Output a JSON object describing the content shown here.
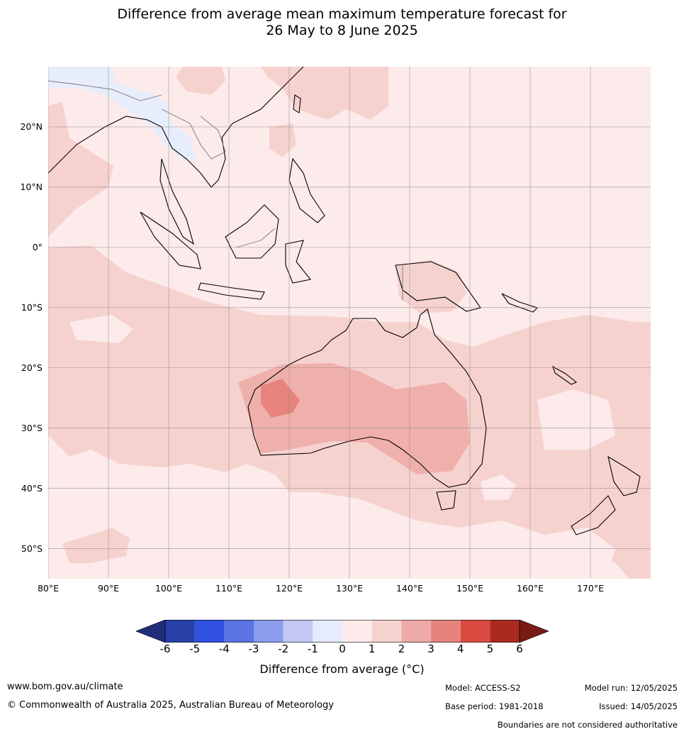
{
  "title_line1": "Difference from average mean maximum temperature forecast for",
  "title_line2": "26 May to 8 June 2025",
  "lat_ticks": [
    {
      "value": 20,
      "label": "20°N"
    },
    {
      "value": 10,
      "label": "10°N"
    },
    {
      "value": 0,
      "label": "0°"
    },
    {
      "value": -10,
      "label": "10°S"
    },
    {
      "value": -20,
      "label": "20°S"
    },
    {
      "value": -30,
      "label": "30°S"
    },
    {
      "value": -40,
      "label": "40°S"
    },
    {
      "value": -50,
      "label": "50°S"
    }
  ],
  "lon_ticks": [
    {
      "value": 80,
      "label": "80°E"
    },
    {
      "value": 90,
      "label": "90°E"
    },
    {
      "value": 100,
      "label": "100°E"
    },
    {
      "value": 110,
      "label": "110°E"
    },
    {
      "value": 120,
      "label": "120°E"
    },
    {
      "value": 130,
      "label": "130°E"
    },
    {
      "value": 140,
      "label": "140°E"
    },
    {
      "value": 150,
      "label": "150°E"
    },
    {
      "value": 160,
      "label": "160°E"
    },
    {
      "value": 170,
      "label": "170°E"
    }
  ],
  "map_extent": {
    "lon_min": 80,
    "lon_max": 180,
    "lat_min": -55,
    "lat_max": 30
  },
  "colorbar": {
    "ticks": [
      "-6",
      "-5",
      "-4",
      "-3",
      "-2",
      "-1",
      "0",
      "1",
      "2",
      "3",
      "4",
      "5",
      "6"
    ],
    "under_color": "#1f2d7a",
    "over_color": "#7a1a14",
    "colors": [
      "#2640a8",
      "#3050e0",
      "#5a74e4",
      "#8a9ceb",
      "#c2c8f3",
      "#e6ecfb",
      "#fcebea",
      "#f6d2cf",
      "#edaaa6",
      "#e6827c",
      "#d94a40",
      "#aa2a20"
    ],
    "label": "Difference from average (°C)"
  },
  "anomaly_colors": {
    "minus1_0": "#e8edfb",
    "zero_1": "#fcebea",
    "one_2": "#f6d2cf",
    "two_3": "#efb0ac",
    "three_4": "#e8847d"
  },
  "footer": {
    "website": "www.bom.gov.au/climate",
    "copyright": "© Commonwealth of Australia 2025, Australian Bureau of Meteorology",
    "model": "Model: ACCESS-S2",
    "base_period": "Base period: 1981-2018",
    "model_run": "Model run: 12/05/2025",
    "issued": "Issued: 14/05/2025",
    "disclaimer": "Boundaries are not considered authoritative"
  }
}
